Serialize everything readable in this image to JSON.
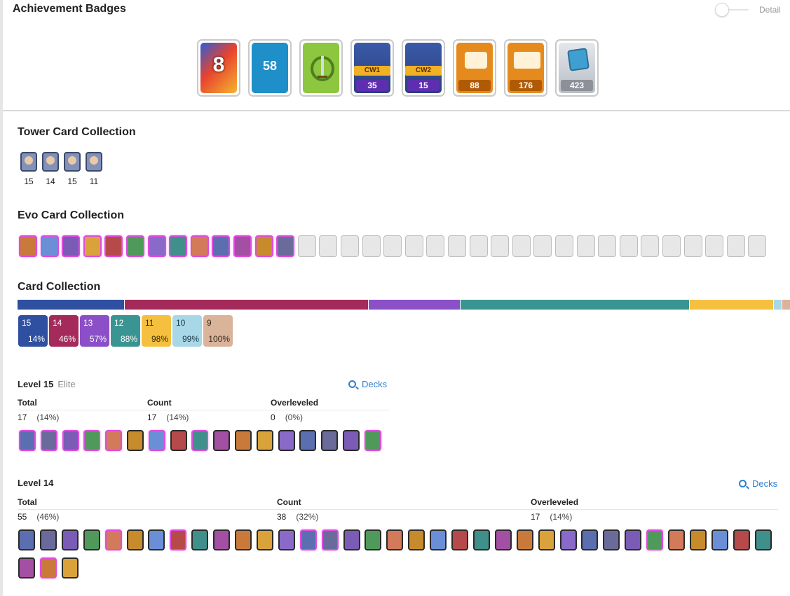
{
  "header": {
    "title": "Achievement Badges",
    "toggle_label": "Detail"
  },
  "badges": [
    {
      "label": "8",
      "pill": "",
      "ribbon": "",
      "bg": "#e8432e",
      "icon": "colorful-8-badge-icon"
    },
    {
      "label": "58",
      "pill": "",
      "ribbon": "",
      "bg": "#1e8fc8",
      "icon": "level-58-badge-icon"
    },
    {
      "label": "",
      "pill": "",
      "ribbon": "",
      "bg": "#8dc63f",
      "icon": "laurel-sword-badge-icon"
    },
    {
      "label": "",
      "pill": "35",
      "ribbon": "CW1",
      "bg": "#3a5aa8",
      "icon": "clan-war-1-badge-icon"
    },
    {
      "label": "",
      "pill": "15",
      "ribbon": "CW2",
      "bg": "#3a5aa8",
      "icon": "clan-war-2-badge-icon"
    },
    {
      "label": "",
      "pill": "88",
      "ribbon": "",
      "bg": "#e58b1d",
      "icon": "crown-cards-badge-icon"
    },
    {
      "label": "",
      "pill": "176",
      "ribbon": "",
      "bg": "#e58b1d",
      "icon": "crown-flag-badge-icon"
    },
    {
      "label": "",
      "pill": "423",
      "ribbon": "",
      "bg": "#c9cdd3",
      "icon": "card-collection-badge-icon"
    }
  ],
  "tower": {
    "title": "Tower Card Collection",
    "levels": [
      "15",
      "14",
      "15",
      "11"
    ]
  },
  "evo": {
    "title": "Evo Card Collection",
    "unlocked": 13,
    "total": 35
  },
  "collection": {
    "title": "Card Collection",
    "levels": [
      {
        "level": "15",
        "pct": "14%",
        "color": "#2f4fa0",
        "text": "#ffffff",
        "share": 0.14
      },
      {
        "level": "14",
        "pct": "46%",
        "color": "#a52a5c",
        "text": "#ffffff",
        "share": 0.32
      },
      {
        "level": "13",
        "pct": "57%",
        "color": "#8b4fc7",
        "text": "#ffffff",
        "share": 0.12
      },
      {
        "level": "12",
        "pct": "88%",
        "color": "#3a9592",
        "text": "#ffffff",
        "share": 0.3
      },
      {
        "level": "11",
        "pct": "98%",
        "color": "#f5c040",
        "text": "#3a2a00",
        "share": 0.11
      },
      {
        "level": "10",
        "pct": "99%",
        "color": "#a8d8e8",
        "text": "#1b3a45",
        "share": 0.01
      },
      {
        "level": "9",
        "pct": "100%",
        "color": "#d9b39a",
        "text": "#3a2a1a",
        "share": 0.01
      }
    ]
  },
  "level15": {
    "title": "Level 15",
    "subtitle": "Elite",
    "decks": "Decks",
    "cols": [
      "Total",
      "Count",
      "Overleveled"
    ],
    "total": "17",
    "total_pct": "(14%)",
    "count": "17",
    "count_pct": "(14%)",
    "over": "0",
    "over_pct": "(0%)",
    "cards": 17
  },
  "level14": {
    "title": "Level 14",
    "decks": "Decks",
    "cols": [
      "Total",
      "Count",
      "Overleveled"
    ],
    "total": "55",
    "total_pct": "(46%)",
    "count": "38",
    "count_pct": "(32%)",
    "over": "17",
    "over_pct": "(14%)",
    "cards": 38
  }
}
